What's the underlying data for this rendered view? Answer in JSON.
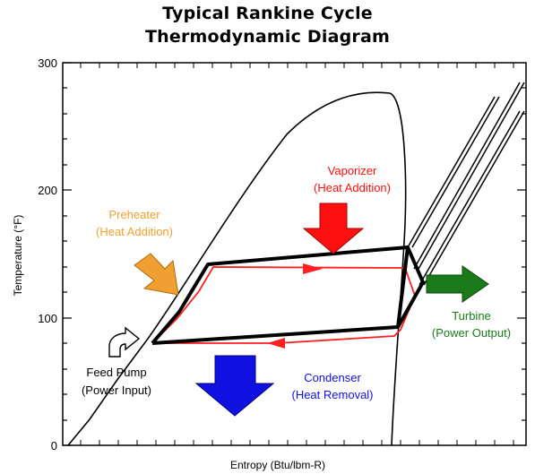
{
  "title": {
    "line1": "Typical Rankine Cycle",
    "line2": "Thermodynamic Diagram"
  },
  "axes": {
    "xlabel": "Entropy (Btu/lbm-R)",
    "ylabel": "Temperature (°F)",
    "yticks": [
      "0",
      "100",
      "200",
      "300"
    ]
  },
  "labels": {
    "preheater": [
      "Preheater",
      "(Heat Addition)"
    ],
    "vaporizer": [
      "Vaporizer",
      "(Heat Addition)"
    ],
    "turbine": [
      "Turbine",
      "(Power Output)"
    ],
    "condenser": [
      "Condenser",
      "(Heat Removal)"
    ],
    "feed_pump": [
      "Feed Pump",
      "(Power Input)"
    ]
  },
  "colors": {
    "preheater": "#f0a030",
    "vaporizer": "#ff1010",
    "turbine": "#1a7a1a",
    "condenser": "#1010e0",
    "feed_pump": "#000000",
    "cycle_red": "#ff2020",
    "cycle_black": "#000000"
  },
  "icons": {
    "preheater_arrow": "orange-arrow-icon",
    "vaporizer_arrow": "red-down-arrow-icon",
    "turbine_arrow": "green-right-arrow-icon",
    "condenser_arrow": "blue-down-arrow-icon",
    "feed_pump_arrow": "curved-arrow-icon"
  }
}
